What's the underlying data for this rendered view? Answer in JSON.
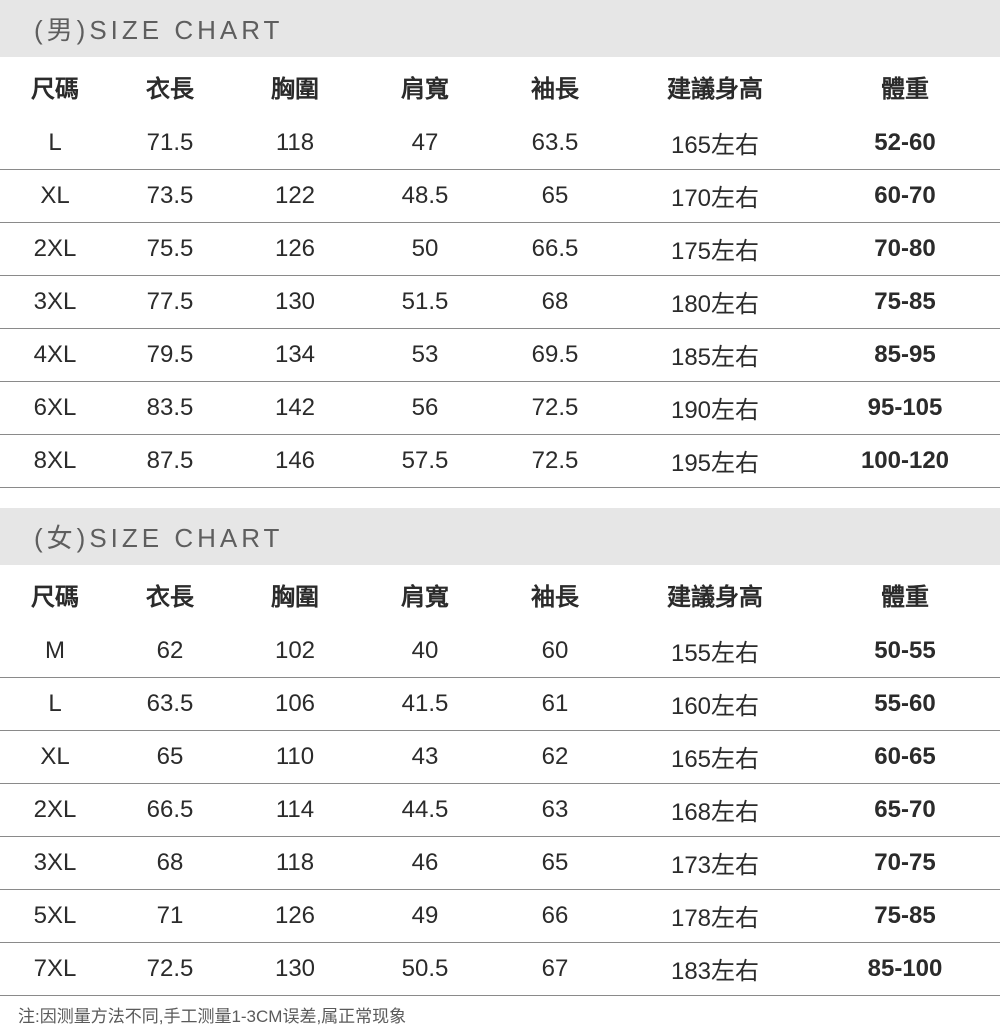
{
  "colors": {
    "title_bg": "#e6e6e6",
    "title_text": "#5e5e5e",
    "body_text": "#2b2b2b",
    "row_border": "#8a8a8a",
    "background": "#ffffff",
    "footnote_text": "#5a5a5a"
  },
  "type": "table",
  "columns": [
    "尺碼",
    "衣長",
    "胸圍",
    "肩寬",
    "袖長",
    "建議身高",
    "體重"
  ],
  "column_widths_pct": [
    11,
    12,
    13,
    13,
    13,
    19,
    19
  ],
  "weight_column_bold": true,
  "font_sizes": {
    "title": 26,
    "cell": 24,
    "footnote": 17
  },
  "male": {
    "title": "(男)SIZE CHART",
    "rows": [
      [
        "L",
        "71.5",
        "118",
        "47",
        "63.5",
        "165左右",
        "52-60"
      ],
      [
        "XL",
        "73.5",
        "122",
        "48.5",
        "65",
        "170左右",
        "60-70"
      ],
      [
        "2XL",
        "75.5",
        "126",
        "50",
        "66.5",
        "175左右",
        "70-80"
      ],
      [
        "3XL",
        "77.5",
        "130",
        "51.5",
        "68",
        "180左右",
        "75-85"
      ],
      [
        "4XL",
        "79.5",
        "134",
        "53",
        "69.5",
        "185左右",
        "85-95"
      ],
      [
        "6XL",
        "83.5",
        "142",
        "56",
        "72.5",
        "190左右",
        "95-105"
      ],
      [
        "8XL",
        "87.5",
        "146",
        "57.5",
        "72.5",
        "195左右",
        "100-120"
      ]
    ]
  },
  "female": {
    "title": "(女)SIZE CHART",
    "rows": [
      [
        "M",
        "62",
        "102",
        "40",
        "60",
        "155左右",
        "50-55"
      ],
      [
        "L",
        "63.5",
        "106",
        "41.5",
        "61",
        "160左右",
        "55-60"
      ],
      [
        "XL",
        "65",
        "110",
        "43",
        "62",
        "165左右",
        "60-65"
      ],
      [
        "2XL",
        "66.5",
        "114",
        "44.5",
        "63",
        "168左右",
        "65-70"
      ],
      [
        "3XL",
        "68",
        "118",
        "46",
        "65",
        "173左右",
        "70-75"
      ],
      [
        "5XL",
        "71",
        "126",
        "49",
        "66",
        "178左右",
        "75-85"
      ],
      [
        "7XL",
        "72.5",
        "130",
        "50.5",
        "67",
        "183左右",
        "85-100"
      ]
    ]
  },
  "footnote": "注:因测量方法不同,手工测量1-3CM误差,属正常现象"
}
